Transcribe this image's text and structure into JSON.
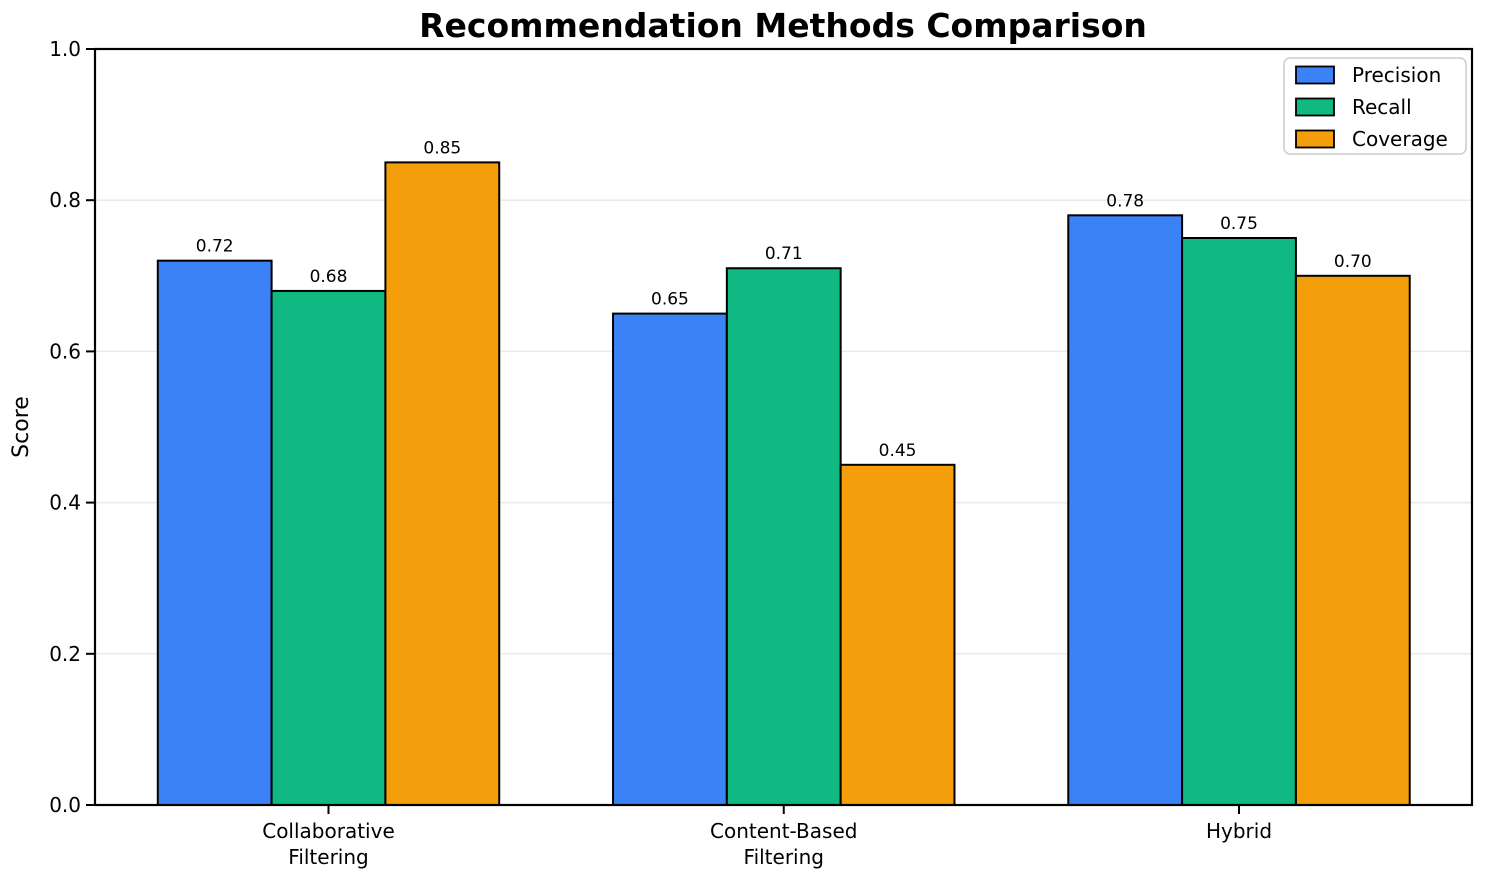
{
  "chart_data": {
    "type": "bar",
    "title": "Recommendation Methods Comparison",
    "ylabel": "Score",
    "xlabel": "",
    "categories": [
      "Collaborative\nFiltering",
      "Content-Based\nFiltering",
      "Hybrid"
    ],
    "series": [
      {
        "name": "Precision",
        "color": "#3b82f6",
        "values": [
          0.72,
          0.65,
          0.78
        ]
      },
      {
        "name": "Recall",
        "color": "#10b981",
        "values": [
          0.68,
          0.71,
          0.75
        ]
      },
      {
        "name": "Coverage",
        "color": "#f59e0b",
        "values": [
          0.85,
          0.45,
          0.7
        ]
      }
    ],
    "bar_value_labels": [
      "0.72",
      "0.68",
      "0.85",
      "0.65",
      "0.71",
      "0.45",
      "0.78",
      "0.75",
      "0.70"
    ],
    "ylim": [
      0.0,
      1.0
    ],
    "yticks": [
      0.0,
      0.2,
      0.4,
      0.6,
      0.8,
      1.0
    ],
    "ytick_labels": [
      "0.0",
      "0.2",
      "0.4",
      "0.6",
      "0.8",
      "1.0"
    ],
    "grid": "horizontal",
    "legend": {
      "position": "upper right",
      "entries": [
        "Precision",
        "Recall",
        "Coverage"
      ]
    },
    "colors": {
      "bar_edge": "#000000",
      "grid_line": "#e9e9e9",
      "axis": "#000000",
      "text": "#000000",
      "background": "#ffffff",
      "legend_border": "#cccccc"
    }
  }
}
